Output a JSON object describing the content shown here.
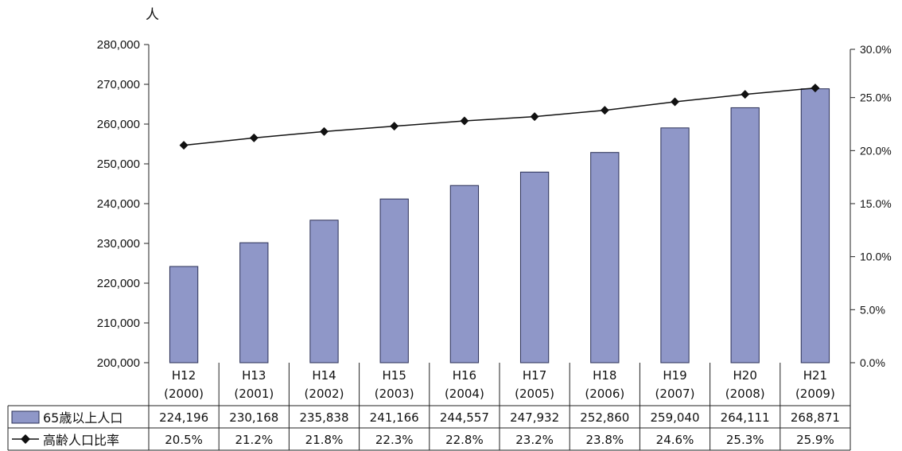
{
  "chart_data": {
    "type": "bar",
    "unit_label": "人",
    "categories": [
      [
        "H12",
        "(2000)"
      ],
      [
        "H13",
        "(2001)"
      ],
      [
        "H14",
        "(2002)"
      ],
      [
        "H15",
        "(2003)"
      ],
      [
        "H16",
        "(2004)"
      ],
      [
        "H17",
        "(2005)"
      ],
      [
        "H18",
        "(2006)"
      ],
      [
        "H19",
        "(2007)"
      ],
      [
        "H20",
        "(2008)"
      ],
      [
        "H21",
        "(2009)"
      ]
    ],
    "y_left": {
      "ylim": [
        200000,
        280000
      ],
      "ticks": [
        200000,
        210000,
        220000,
        230000,
        240000,
        250000,
        260000,
        270000,
        280000
      ],
      "tick_labels": [
        "200,000",
        "210,000",
        "220,000",
        "230,000",
        "240,000",
        "250,000",
        "260,000",
        "270,000",
        "280,000"
      ]
    },
    "y_right": {
      "ylim": [
        0,
        30
      ],
      "ticks": [
        0,
        5,
        10,
        15,
        20,
        25,
        30
      ],
      "tick_labels": [
        "0.0%",
        "5.0%",
        "10.0%",
        "15.0%",
        "20.0%",
        "25.0%",
        "30.0%"
      ]
    },
    "series": [
      {
        "name": "65歳以上人口",
        "type": "bar",
        "axis": "left",
        "color": "#8f97c8",
        "values": [
          224196,
          230168,
          235838,
          241166,
          244557,
          247932,
          252860,
          259040,
          264111,
          268871
        ],
        "labels": [
          "224,196",
          "230,168",
          "235,838",
          "241,166",
          "244,557",
          "247,932",
          "252,860",
          "259,040",
          "264,111",
          "268,871"
        ]
      },
      {
        "name": "高齢人口比率",
        "type": "line",
        "axis": "right",
        "color": "#111111",
        "marker": "diamond",
        "values": [
          20.5,
          21.2,
          21.8,
          22.3,
          22.8,
          23.2,
          23.8,
          24.6,
          25.3,
          25.9
        ],
        "labels": [
          "20.5%",
          "21.2%",
          "21.8%",
          "22.3%",
          "22.8%",
          "23.2%",
          "23.8%",
          "24.6%",
          "25.3%",
          "25.9%"
        ]
      }
    ],
    "grid": false,
    "legend": "table-below"
  }
}
